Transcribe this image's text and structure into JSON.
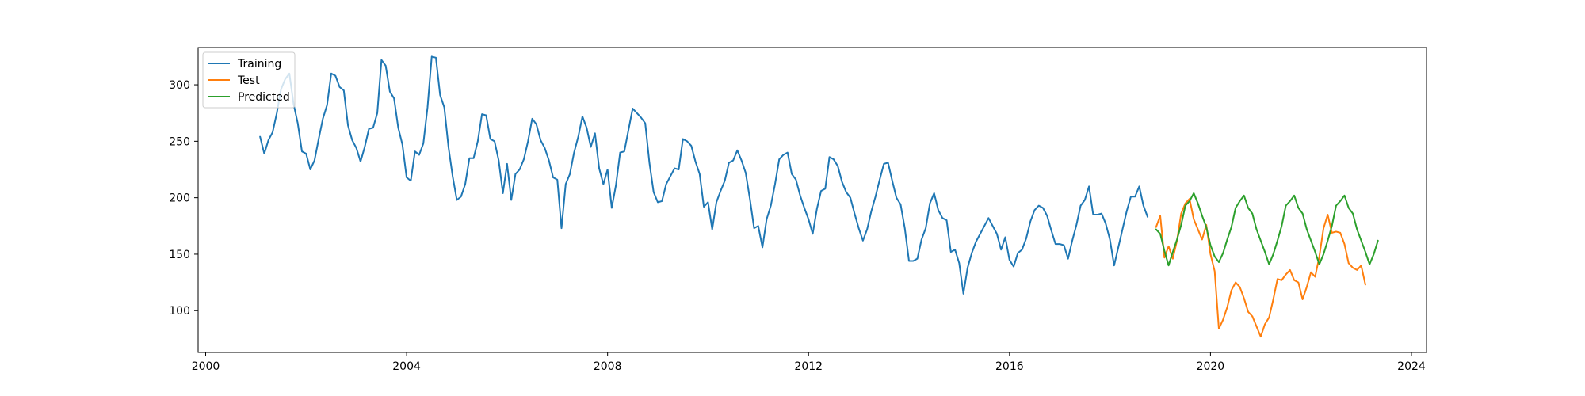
{
  "chart_data": {
    "type": "line",
    "title": "",
    "xlabel": "",
    "ylabel": "",
    "xlim": [
      1999.85,
      2024.3
    ],
    "ylim": [
      63,
      333
    ],
    "x_ticks": [
      2000,
      2004,
      2008,
      2012,
      2016,
      2020,
      2024
    ],
    "y_ticks": [
      100,
      150,
      200,
      250,
      300
    ],
    "grid": false,
    "legend_position": "top-left",
    "series": [
      {
        "name": "Training",
        "color": "#1f77b4",
        "start": 2001.083,
        "step": 0.08333,
        "values": [
          254,
          239,
          251,
          258,
          275,
          296,
          305,
          310,
          283,
          266,
          241,
          239,
          225,
          233,
          252,
          270,
          282,
          310,
          308,
          298,
          295,
          264,
          251,
          244,
          232,
          245,
          261,
          262,
          275,
          322,
          317,
          294,
          288,
          262,
          247,
          218,
          215,
          241,
          238,
          248,
          280,
          325,
          324,
          291,
          280,
          245,
          219,
          198,
          201,
          212,
          235,
          235,
          250,
          274,
          273,
          252,
          250,
          233,
          204,
          230,
          198,
          221,
          225,
          234,
          250,
          270,
          265,
          251,
          244,
          233,
          218,
          216,
          173,
          212,
          221,
          240,
          254,
          272,
          262,
          245,
          257,
          226,
          212,
          225,
          191,
          211,
          240,
          241,
          260,
          279,
          275,
          271,
          266,
          231,
          205,
          196,
          197,
          212,
          219,
          226,
          225,
          252,
          250,
          246,
          232,
          221,
          192,
          196,
          172,
          196,
          206,
          215,
          231,
          233,
          242,
          233,
          222,
          199,
          173,
          175,
          156,
          181,
          193,
          212,
          234,
          238,
          240,
          221,
          216,
          202,
          191,
          181,
          168,
          190,
          206,
          208,
          236,
          234,
          228,
          214,
          205,
          200,
          186,
          173,
          162,
          172,
          188,
          201,
          216,
          230,
          231,
          215,
          200,
          194,
          173,
          144,
          144,
          146,
          163,
          173,
          195,
          204,
          189,
          182,
          180,
          152,
          154,
          142,
          115,
          138,
          151,
          161,
          168,
          175,
          182,
          175,
          168,
          154,
          165,
          145,
          139,
          151,
          154,
          164,
          179,
          189,
          193,
          191,
          184,
          171,
          159,
          159,
          158,
          146,
          162,
          176,
          193,
          198,
          210,
          185,
          185,
          186,
          177,
          163,
          140,
          156,
          172,
          188,
          201,
          201,
          210,
          193,
          183
        ]
      },
      {
        "name": "Test",
        "color": "#ff7f0e",
        "start": 2018.917,
        "step": 0.08333,
        "values": [
          174,
          184,
          147,
          157,
          146,
          162,
          186,
          195,
          199,
          181,
          172,
          163,
          176,
          150,
          135,
          84,
          92,
          103,
          118,
          125,
          121,
          111,
          99,
          95,
          86,
          77,
          88,
          94,
          110,
          128,
          127,
          132,
          136,
          127,
          125,
          110,
          121,
          134,
          130,
          148,
          173,
          185,
          169,
          170,
          169,
          159,
          142,
          138,
          136,
          140,
          123
        ]
      },
      {
        "name": "Predicted",
        "color": "#2ca02c",
        "start": 2018.917,
        "step": 0.08333,
        "values": [
          172,
          168,
          153,
          140,
          152,
          163,
          176,
          193,
          197,
          204,
          195,
          184,
          174,
          158,
          148,
          143,
          151,
          163,
          174,
          191,
          197,
          202,
          191,
          186,
          172,
          162,
          152,
          141,
          150,
          162,
          175,
          193,
          197,
          202,
          191,
          186,
          172,
          162,
          152,
          141,
          150,
          162,
          175,
          193,
          197,
          202,
          191,
          186,
          172,
          162,
          152,
          141,
          150,
          162
        ]
      }
    ]
  }
}
